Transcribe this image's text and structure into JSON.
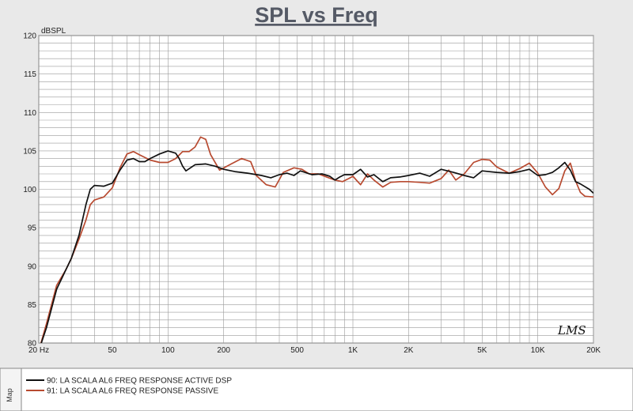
{
  "chart_data": {
    "type": "line",
    "title": "SPL vs Freq",
    "ylabel": "dBSPL",
    "xlabel": "",
    "x_scale": "log",
    "xlim": [
      20,
      20000
    ],
    "ylim": [
      80,
      120
    ],
    "y_ticks": [
      80,
      85,
      90,
      95,
      100,
      105,
      110,
      115,
      120
    ],
    "x_ticks": [
      {
        "value": 20,
        "label": "20  Hz"
      },
      {
        "value": 50,
        "label": "50"
      },
      {
        "value": 100,
        "label": "100"
      },
      {
        "value": 200,
        "label": "200"
      },
      {
        "value": 500,
        "label": "500"
      },
      {
        "value": 1000,
        "label": "1K"
      },
      {
        "value": 2000,
        "label": "2K"
      },
      {
        "value": 5000,
        "label": "5K"
      },
      {
        "value": 10000,
        "label": "10K"
      },
      {
        "value": 20000,
        "label": "20K"
      }
    ],
    "grid": true,
    "legend_position": "bottom",
    "series": [
      {
        "name": "90: LA SCALA AL6 FREQ RESPONSE ACTIVE DSP",
        "color": "#111111",
        "points": [
          [
            20,
            79
          ],
          [
            22,
            82
          ],
          [
            25,
            87
          ],
          [
            28,
            89.5
          ],
          [
            30,
            91
          ],
          [
            33,
            94
          ],
          [
            36,
            98
          ],
          [
            38,
            100
          ],
          [
            40,
            100.5
          ],
          [
            45,
            100.4
          ],
          [
            50,
            100.8
          ],
          [
            55,
            102.5
          ],
          [
            60,
            103.8
          ],
          [
            65,
            104
          ],
          [
            70,
            103.6
          ],
          [
            75,
            103.6
          ],
          [
            80,
            104
          ],
          [
            90,
            104.6
          ],
          [
            100,
            105
          ],
          [
            110,
            104.7
          ],
          [
            115,
            104
          ],
          [
            120,
            103
          ],
          [
            125,
            102.4
          ],
          [
            140,
            103.2
          ],
          [
            160,
            103.3
          ],
          [
            180,
            103
          ],
          [
            200,
            102.6
          ],
          [
            230,
            102.3
          ],
          [
            270,
            102.1
          ],
          [
            320,
            101.8
          ],
          [
            360,
            101.5
          ],
          [
            400,
            101.9
          ],
          [
            440,
            102.1
          ],
          [
            480,
            101.8
          ],
          [
            520,
            102.4
          ],
          [
            600,
            101.9
          ],
          [
            680,
            102
          ],
          [
            750,
            101.7
          ],
          [
            800,
            101.2
          ],
          [
            850,
            101.6
          ],
          [
            900,
            101.9
          ],
          [
            1000,
            101.9
          ],
          [
            1100,
            102.6
          ],
          [
            1200,
            101.6
          ],
          [
            1300,
            101.9
          ],
          [
            1450,
            101
          ],
          [
            1600,
            101.5
          ],
          [
            1800,
            101.6
          ],
          [
            2000,
            101.8
          ],
          [
            2300,
            102.1
          ],
          [
            2600,
            101.7
          ],
          [
            3000,
            102.6
          ],
          [
            3500,
            102.2
          ],
          [
            4000,
            101.8
          ],
          [
            4500,
            101.5
          ],
          [
            5000,
            102.4
          ],
          [
            6000,
            102.2
          ],
          [
            7000,
            102.1
          ],
          [
            8000,
            102.3
          ],
          [
            9000,
            102.6
          ],
          [
            10000,
            101.8
          ],
          [
            11000,
            101.9
          ],
          [
            12000,
            102.2
          ],
          [
            13000,
            102.8
          ],
          [
            14000,
            103.5
          ],
          [
            15000,
            102.5
          ],
          [
            16000,
            101
          ],
          [
            17000,
            100.7
          ],
          [
            19000,
            100
          ],
          [
            20000,
            99.5
          ]
        ]
      },
      {
        "name": "91: LA SCALA AL6 FREQ RESPONSE PASSIVE",
        "color": "#b84a30",
        "points": [
          [
            20,
            79
          ],
          [
            22,
            82.5
          ],
          [
            25,
            87.5
          ],
          [
            28,
            89.5
          ],
          [
            30,
            91
          ],
          [
            33,
            93.5
          ],
          [
            36,
            96
          ],
          [
            38,
            98
          ],
          [
            40,
            98.6
          ],
          [
            45,
            99
          ],
          [
            50,
            100.2
          ],
          [
            55,
            102.8
          ],
          [
            60,
            104.6
          ],
          [
            65,
            104.9
          ],
          [
            70,
            104.5
          ],
          [
            80,
            103.8
          ],
          [
            90,
            103.5
          ],
          [
            100,
            103.5
          ],
          [
            110,
            104
          ],
          [
            120,
            104.9
          ],
          [
            130,
            104.9
          ],
          [
            140,
            105.5
          ],
          [
            150,
            106.8
          ],
          [
            160,
            106.5
          ],
          [
            170,
            104.5
          ],
          [
            190,
            102.5
          ],
          [
            220,
            103.3
          ],
          [
            250,
            104
          ],
          [
            280,
            103.6
          ],
          [
            300,
            101.8
          ],
          [
            340,
            100.6
          ],
          [
            380,
            100.3
          ],
          [
            420,
            102.2
          ],
          [
            480,
            102.8
          ],
          [
            530,
            102.6
          ],
          [
            580,
            102
          ],
          [
            650,
            102
          ],
          [
            720,
            101.6
          ],
          [
            800,
            101.2
          ],
          [
            880,
            101
          ],
          [
            950,
            101.4
          ],
          [
            1000,
            101.7
          ],
          [
            1100,
            100.6
          ],
          [
            1200,
            102
          ],
          [
            1300,
            101.2
          ],
          [
            1450,
            100.3
          ],
          [
            1600,
            100.9
          ],
          [
            1800,
            101
          ],
          [
            2000,
            101
          ],
          [
            2300,
            100.9
          ],
          [
            2600,
            100.8
          ],
          [
            3000,
            101.4
          ],
          [
            3300,
            102.5
          ],
          [
            3600,
            101.2
          ],
          [
            4000,
            102
          ],
          [
            4500,
            103.5
          ],
          [
            5000,
            103.9
          ],
          [
            5500,
            103.8
          ],
          [
            6000,
            102.9
          ],
          [
            7000,
            102.1
          ],
          [
            8000,
            102.7
          ],
          [
            9000,
            103.4
          ],
          [
            10000,
            102.1
          ],
          [
            11000,
            100.3
          ],
          [
            12000,
            99.3
          ],
          [
            13000,
            100.1
          ],
          [
            14000,
            102.4
          ],
          [
            15000,
            103.4
          ],
          [
            16000,
            101.1
          ],
          [
            17000,
            99.6
          ],
          [
            18000,
            99.1
          ],
          [
            20000,
            99
          ]
        ]
      }
    ]
  },
  "side_label": "Map",
  "logo_text": "LMS"
}
